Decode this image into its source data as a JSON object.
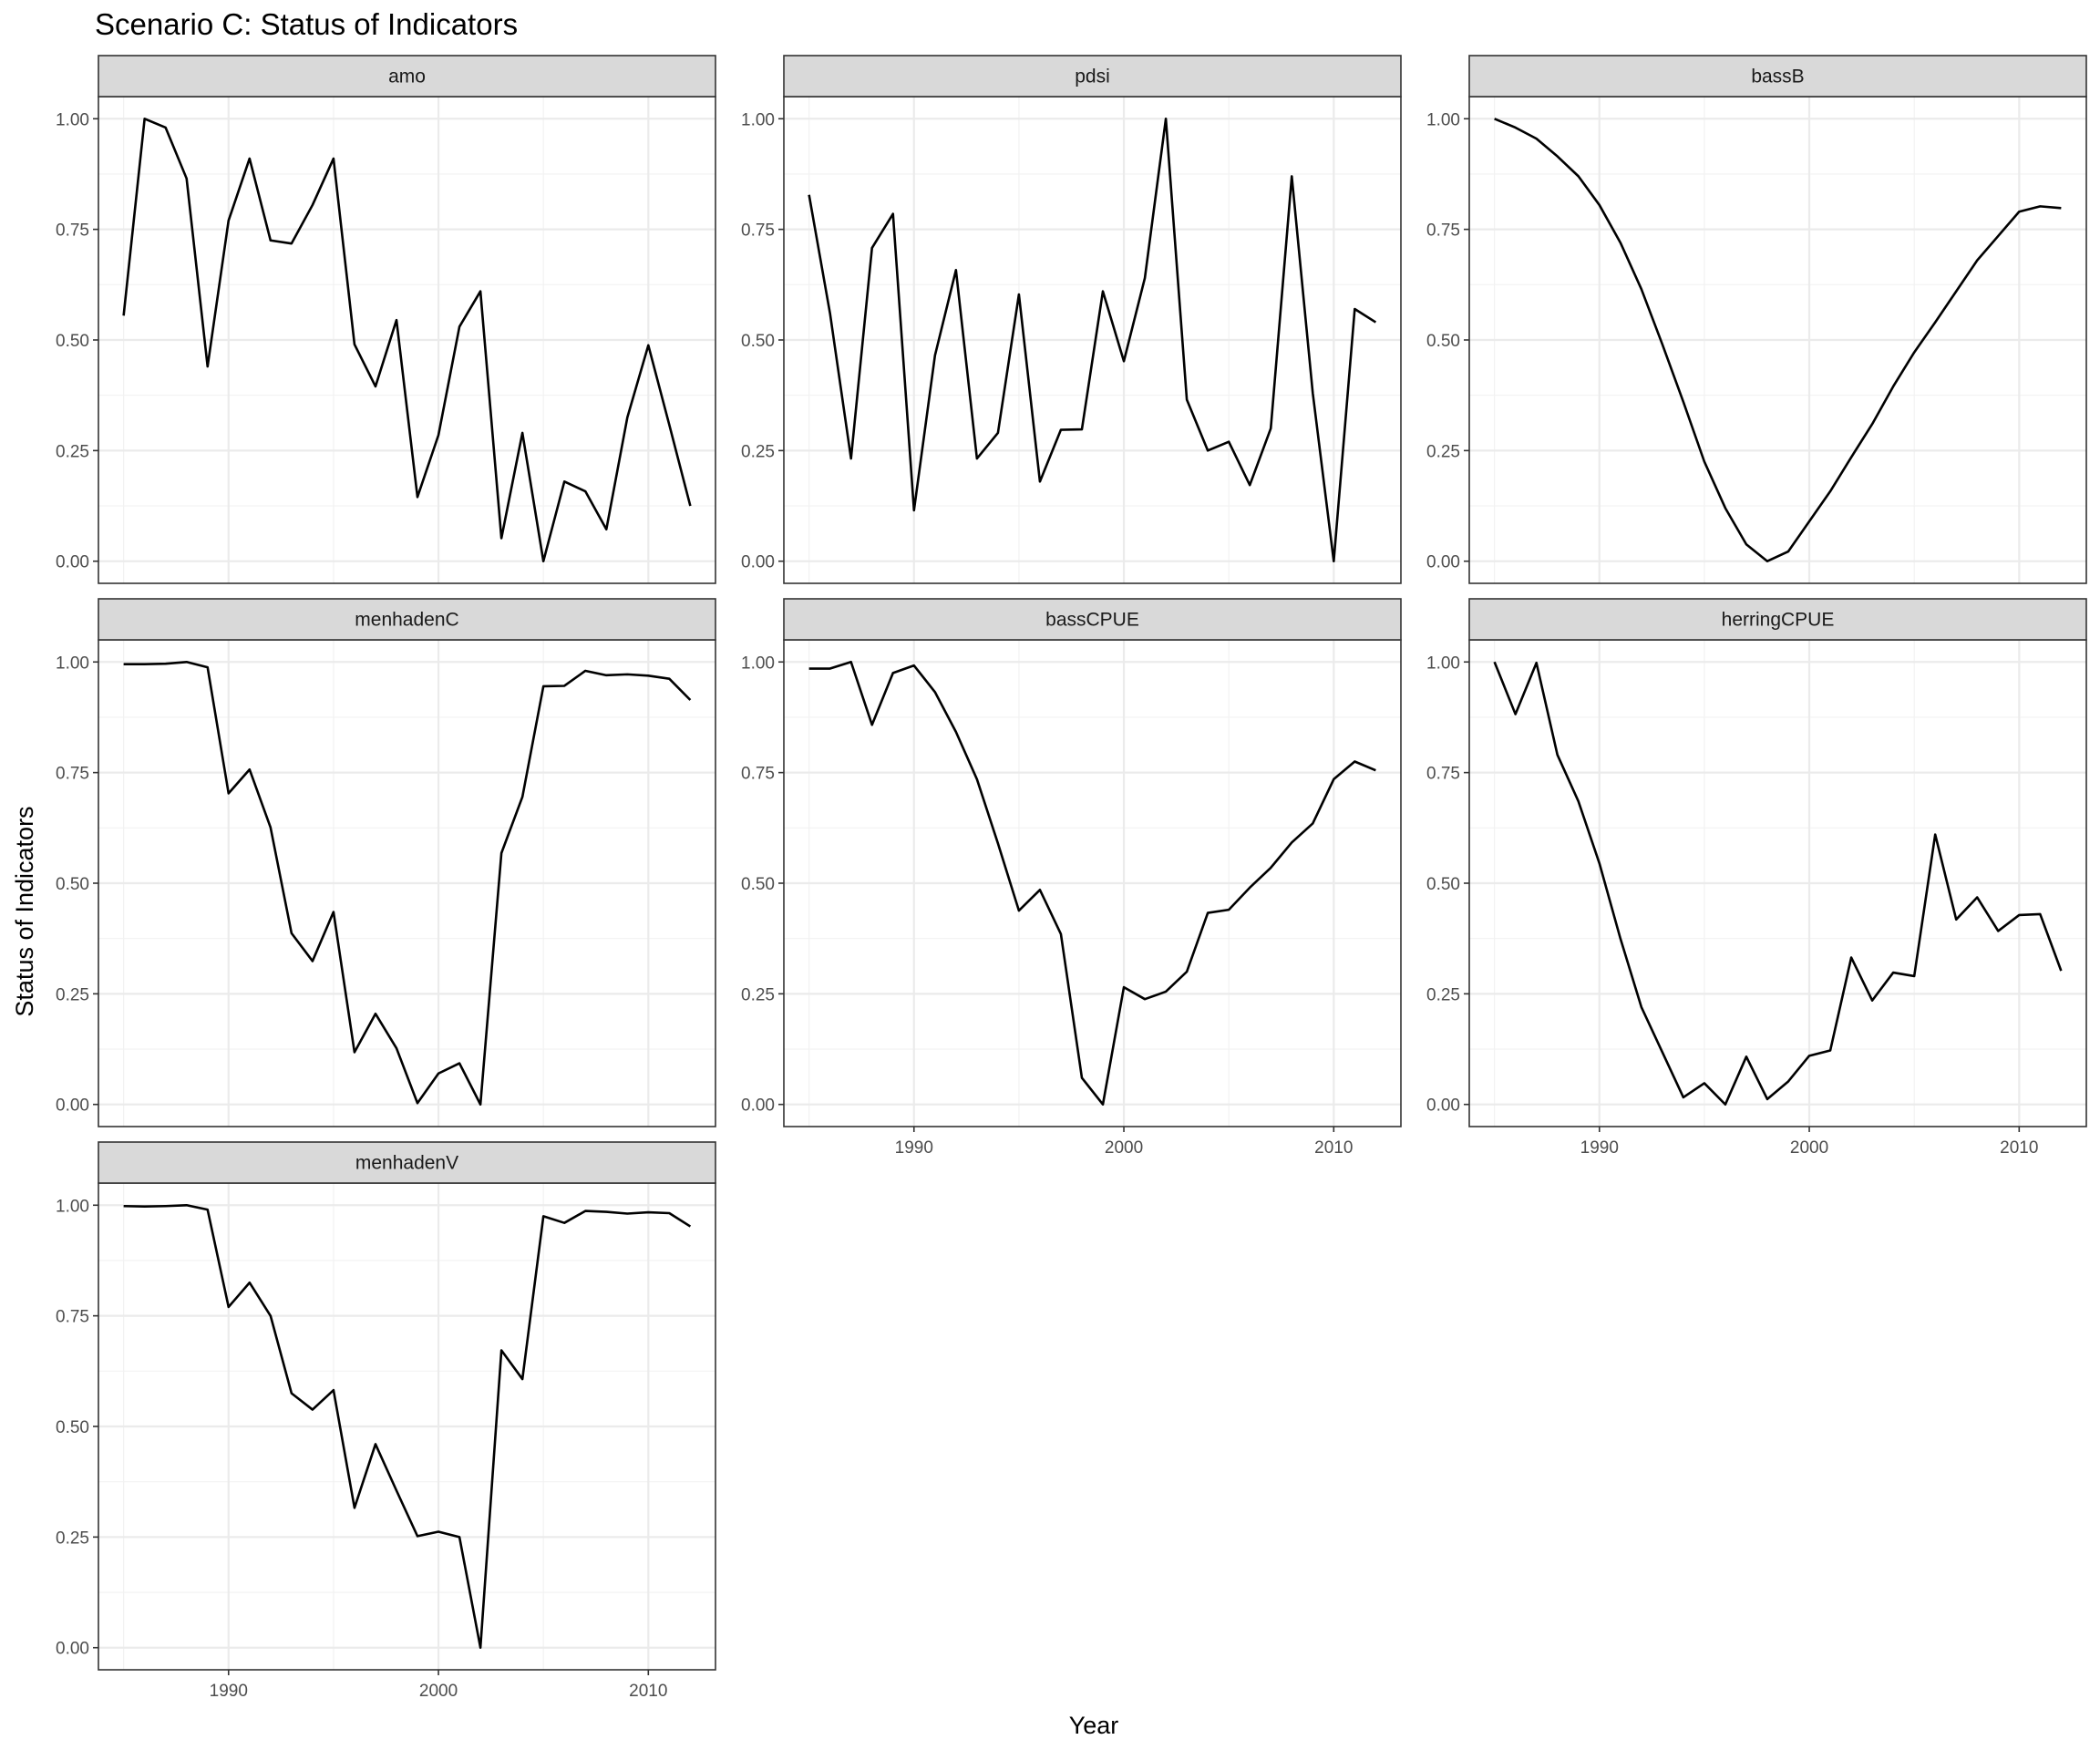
{
  "chart_data": {
    "type": "line",
    "title": "Scenario C: Status of Indicators",
    "xlabel": "Year",
    "ylabel": "Status of Indicators",
    "xlim": [
      1983.8,
      2013.2
    ],
    "ylim": [
      -0.05,
      1.05
    ],
    "x_ticks": [
      1990,
      2000,
      2010
    ],
    "y_ticks": [
      0,
      0.25,
      0.5,
      0.75,
      1
    ],
    "y_tick_labels": [
      "0.00",
      "0.25",
      "0.50",
      "0.75",
      "1.00"
    ],
    "grid": true,
    "x": [
      1985,
      1986,
      1987,
      1988,
      1989,
      1990,
      1991,
      1992,
      1993,
      1994,
      1995,
      1996,
      1997,
      1998,
      1999,
      2000,
      2001,
      2002,
      2003,
      2004,
      2005,
      2006,
      2007,
      2008,
      2009,
      2010,
      2011,
      2012
    ],
    "series": [
      {
        "name": "amo",
        "values": [
          0.555,
          1.0,
          0.98,
          0.865,
          0.44,
          0.77,
          0.91,
          0.725,
          0.718,
          0.805,
          0.91,
          0.49,
          0.395,
          0.545,
          0.145,
          0.285,
          0.53,
          0.61,
          0.052,
          0.29,
          0.0,
          0.18,
          0.158,
          0.072,
          0.325,
          0.488,
          0.308,
          0.125
        ]
      },
      {
        "name": "pdsi",
        "values": [
          0.828,
          0.56,
          0.232,
          0.708,
          0.785,
          0.115,
          0.465,
          0.658,
          0.232,
          0.29,
          0.603,
          0.18,
          0.297,
          0.298,
          0.61,
          0.452,
          0.64,
          1.0,
          0.365,
          0.25,
          0.27,
          0.172,
          0.3,
          0.87,
          0.38,
          0.0,
          0.57,
          0.54
        ]
      },
      {
        "name": "bassB",
        "values": [
          1.0,
          0.98,
          0.955,
          0.915,
          0.87,
          0.805,
          0.72,
          0.615,
          0.49,
          0.36,
          0.225,
          0.12,
          0.038,
          0.0,
          0.022,
          0.09,
          0.158,
          0.235,
          0.31,
          0.395,
          0.472,
          0.54,
          0.61,
          0.68,
          0.735,
          0.79,
          0.802,
          0.798
        ]
      },
      {
        "name": "menhadenC",
        "values": [
          0.995,
          0.995,
          0.996,
          1.0,
          0.988,
          0.703,
          0.757,
          0.626,
          0.387,
          0.324,
          0.435,
          0.118,
          0.205,
          0.127,
          0.003,
          0.07,
          0.093,
          0.0,
          0.568,
          0.695,
          0.945,
          0.946,
          0.98,
          0.97,
          0.972,
          0.969,
          0.962,
          0.914
        ]
      },
      {
        "name": "bassCPUE",
        "values": [
          0.985,
          0.985,
          1.0,
          0.858,
          0.975,
          0.992,
          0.932,
          0.842,
          0.735,
          0.59,
          0.438,
          0.485,
          0.385,
          0.06,
          0.0,
          0.265,
          0.238,
          0.255,
          0.3,
          0.433,
          0.44,
          0.49,
          0.535,
          0.592,
          0.635,
          0.735,
          0.775,
          0.755
        ]
      },
      {
        "name": "herringCPUE",
        "values": [
          1.0,
          0.882,
          0.998,
          0.79,
          0.685,
          0.545,
          0.375,
          0.22,
          0.118,
          0.016,
          0.048,
          0.0,
          0.108,
          0.012,
          0.052,
          0.11,
          0.122,
          0.332,
          0.235,
          0.298,
          0.29,
          0.61,
          0.418,
          0.468,
          0.392,
          0.428,
          0.43,
          0.302
        ]
      },
      {
        "name": "menhadenV",
        "values": [
          0.998,
          0.997,
          0.998,
          1.0,
          0.99,
          0.77,
          0.825,
          0.75,
          0.575,
          0.538,
          0.582,
          0.316,
          0.46,
          0.355,
          0.252,
          0.262,
          0.25,
          0.0,
          0.672,
          0.607,
          0.975,
          0.96,
          0.987,
          0.985,
          0.981,
          0.984,
          0.982,
          0.952
        ]
      }
    ]
  }
}
